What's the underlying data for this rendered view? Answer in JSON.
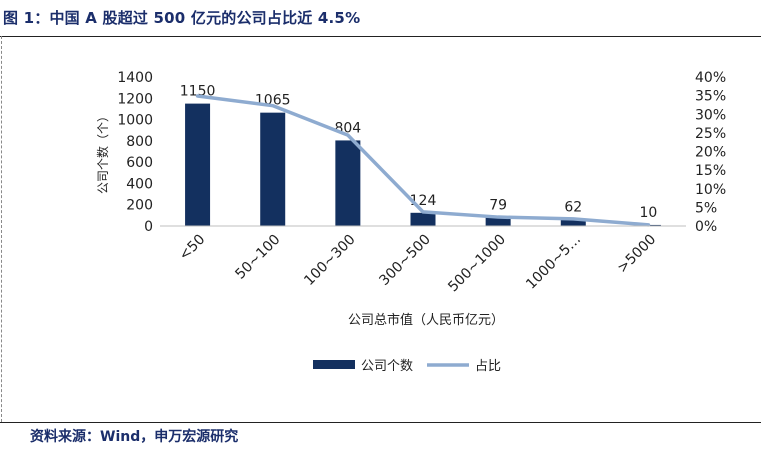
{
  "title": "图 1：中国 A 股超过 500 亿元的公司占比近 4.5%",
  "source": "资料来源：Wind，申万宏源研究",
  "colors": {
    "bar": "#13305f",
    "line": "#8eabd0",
    "title": "#1b2e6b"
  },
  "chart_data": {
    "type": "bar+line",
    "categories": [
      "<50",
      "50~100",
      "100~300",
      "300~500",
      "500~1000",
      "1000~5…",
      ">5000"
    ],
    "series": [
      {
        "name": "公司个数",
        "type": "bar",
        "axis": "left",
        "values": [
          1150,
          1065,
          804,
          124,
          79,
          62,
          10
        ],
        "labels": [
          "1150",
          "1065",
          "804",
          "124",
          "79",
          "62",
          "10"
        ]
      },
      {
        "name": "占比",
        "type": "line",
        "axis": "right",
        "values": [
          0.349,
          0.323,
          0.244,
          0.038,
          0.024,
          0.019,
          0.003
        ]
      }
    ],
    "xlabel": "公司总市值（人民币亿元）",
    "ylabel": "公司个数（个）",
    "ylim": [
      0,
      1400
    ],
    "y2lim": [
      0,
      0.4
    ],
    "yticks": [
      "0",
      "200",
      "400",
      "600",
      "800",
      "1000",
      "1200",
      "1400"
    ],
    "y2ticks": [
      "0%",
      "5%",
      "10%",
      "15%",
      "20%",
      "25%",
      "30%",
      "35%",
      "40%"
    ],
    "legend": [
      "公司个数",
      "占比"
    ],
    "legend_position": "bottom"
  }
}
